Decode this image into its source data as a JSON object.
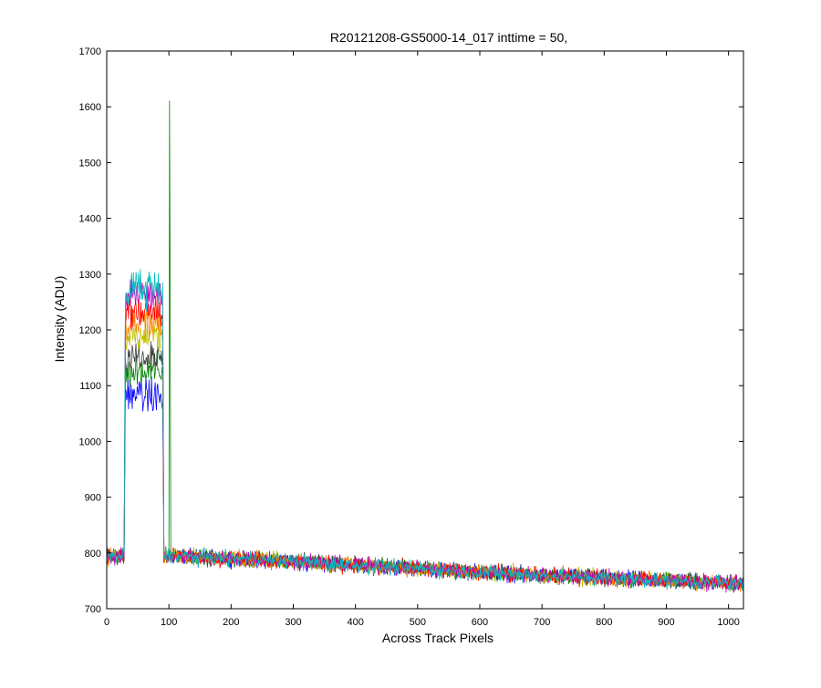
{
  "chart_data": {
    "type": "line",
    "title": "R20121208-GS5000-14_017 inttime = 50,",
    "xlabel": "Across Track Pixels",
    "ylabel": "Intensity (ADU)",
    "xlim": [
      0,
      1024
    ],
    "ylim": [
      700,
      1700
    ],
    "xticks": [
      0,
      100,
      200,
      300,
      400,
      500,
      600,
      700,
      800,
      900,
      1000
    ],
    "yticks": [
      700,
      800,
      900,
      1000,
      1100,
      1200,
      1300,
      1400,
      1500,
      1600,
      1700
    ],
    "grid": false,
    "legend": "none",
    "noise_amplitude_adu": 12,
    "spike": {
      "x": 101,
      "y": 1611,
      "series": "green"
    },
    "series": [
      {
        "color": "#0000ff",
        "baseline": [
          [
            0,
            795
          ],
          [
            100,
            795
          ],
          [
            300,
            785
          ],
          [
            500,
            772
          ],
          [
            700,
            760
          ],
          [
            1024,
            745
          ]
        ],
        "plateau": {
          "x_start": 30,
          "x_end": 90,
          "level": 1085
        }
      },
      {
        "color": "#008000",
        "baseline": [
          [
            0,
            795
          ],
          [
            100,
            795
          ],
          [
            300,
            785
          ],
          [
            500,
            772
          ],
          [
            700,
            760
          ],
          [
            1024,
            745
          ]
        ],
        "plateau": {
          "x_start": 30,
          "x_end": 90,
          "level": 1125
        }
      },
      {
        "color": "#404040",
        "baseline": [
          [
            0,
            795
          ],
          [
            100,
            795
          ],
          [
            300,
            785
          ],
          [
            500,
            772
          ],
          [
            700,
            760
          ],
          [
            1024,
            745
          ]
        ],
        "plateau": {
          "x_start": 30,
          "x_end": 90,
          "level": 1160
        }
      },
      {
        "color": "#bfbf00",
        "baseline": [
          [
            0,
            795
          ],
          [
            100,
            795
          ],
          [
            300,
            785
          ],
          [
            500,
            772
          ],
          [
            700,
            760
          ],
          [
            1024,
            745
          ]
        ],
        "plateau": {
          "x_start": 30,
          "x_end": 90,
          "level": 1195
        }
      },
      {
        "color": "#ff8000",
        "baseline": [
          [
            0,
            795
          ],
          [
            100,
            795
          ],
          [
            300,
            785
          ],
          [
            500,
            772
          ],
          [
            700,
            760
          ],
          [
            1024,
            745
          ]
        ],
        "plateau": {
          "x_start": 30,
          "x_end": 90,
          "level": 1215
        }
      },
      {
        "color": "#ff0000",
        "baseline": [
          [
            0,
            795
          ],
          [
            100,
            795
          ],
          [
            300,
            785
          ],
          [
            500,
            772
          ],
          [
            700,
            760
          ],
          [
            1024,
            745
          ]
        ],
        "plateau": {
          "x_start": 30,
          "x_end": 90,
          "level": 1235
        }
      },
      {
        "color": "#bf00bf",
        "baseline": [
          [
            0,
            795
          ],
          [
            100,
            795
          ],
          [
            300,
            785
          ],
          [
            500,
            772
          ],
          [
            700,
            760
          ],
          [
            1024,
            745
          ]
        ],
        "plateau": {
          "x_start": 30,
          "x_end": 90,
          "level": 1265
        }
      },
      {
        "color": "#00bfbf",
        "baseline": [
          [
            0,
            795
          ],
          [
            100,
            795
          ],
          [
            300,
            785
          ],
          [
            500,
            772
          ],
          [
            700,
            760
          ],
          [
            1024,
            745
          ]
        ],
        "plateau": {
          "x_start": 30,
          "x_end": 90,
          "level": 1275
        }
      }
    ]
  }
}
